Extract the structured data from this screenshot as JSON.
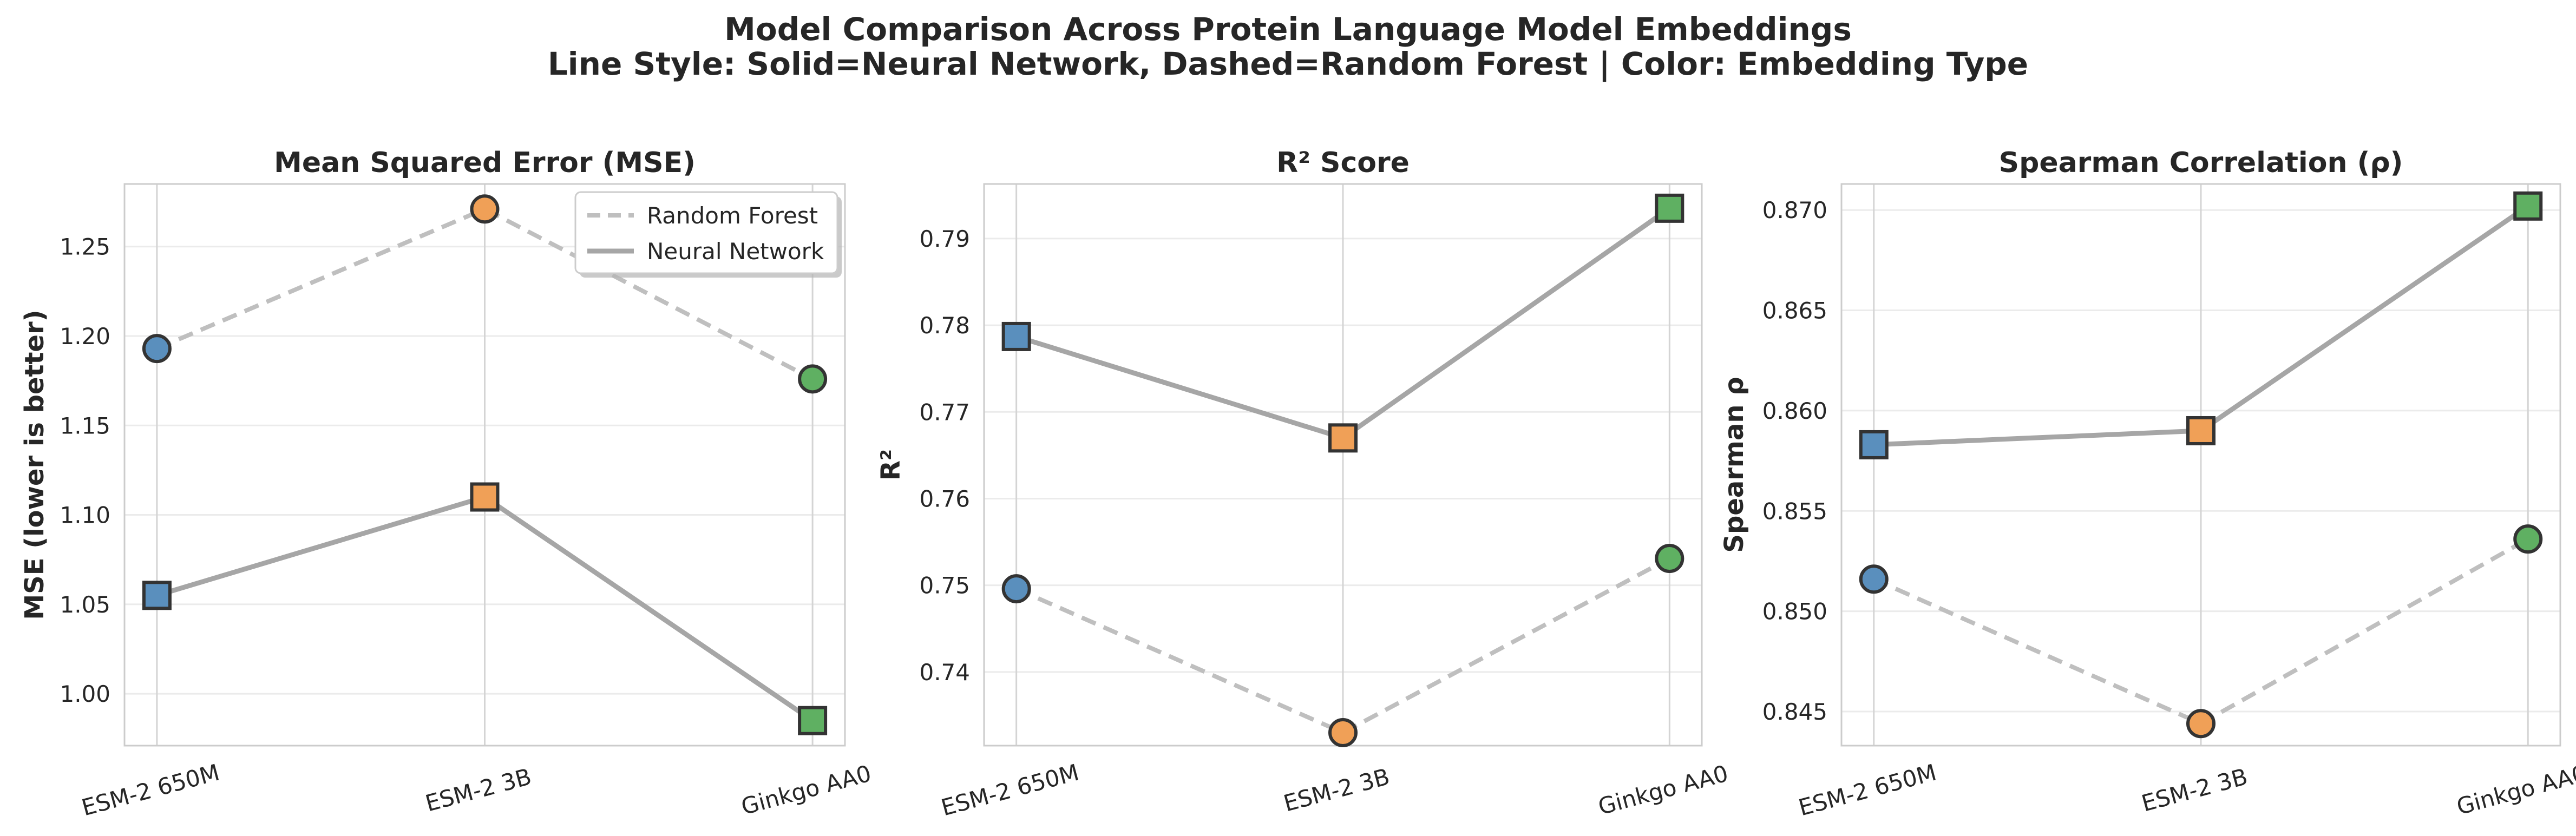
{
  "suptitle": {
    "line1": "Model Comparison Across Protein Language Model Embeddings",
    "line2": "Line Style: Solid=Neural Network, Dashed=Random Forest | Color: Embedding Type"
  },
  "colors": {
    "ESM-2 650M": "#5a8fbd",
    "ESM-2 3B": "#f0a057",
    "Ginkgo AA0": "#5fb062",
    "neural_network_line": "#a6a6a6",
    "random_forest_line": "#bfbfbf",
    "marker_edge": "#333333"
  },
  "legend": {
    "panel": 0,
    "position": "top-right",
    "entries": [
      {
        "label": "Random Forest",
        "style": "dashed"
      },
      {
        "label": "Neural Network",
        "style": "solid"
      }
    ]
  },
  "chart_data": [
    {
      "type": "line",
      "title": "Mean Squared Error (MSE)",
      "xlabel": "",
      "ylabel": "MSE (lower is better)",
      "categories": [
        "ESM-2 650M",
        "ESM-2 3B",
        "Ginkgo AA0"
      ],
      "ylim": [
        0.971,
        1.285
      ],
      "yticks": [
        1.0,
        1.05,
        1.1,
        1.15,
        1.2,
        1.25
      ],
      "ytick_labels": [
        "1.00",
        "1.05",
        "1.10",
        "1.15",
        "1.20",
        "1.25"
      ],
      "grid": true,
      "series": [
        {
          "name": "Random Forest",
          "style": "dashed",
          "marker": "circle",
          "values": [
            1.193,
            1.271,
            1.176
          ]
        },
        {
          "name": "Neural Network",
          "style": "solid",
          "marker": "square",
          "values": [
            1.055,
            1.11,
            0.985
          ]
        }
      ]
    },
    {
      "type": "line",
      "title": "R² Score",
      "xlabel": "",
      "ylabel": "R²",
      "categories": [
        "ESM-2 650M",
        "ESM-2 3B",
        "Ginkgo AA0"
      ],
      "ylim": [
        0.7315,
        0.7963
      ],
      "yticks": [
        0.74,
        0.75,
        0.76,
        0.77,
        0.78,
        0.79
      ],
      "ytick_labels": [
        "0.74",
        "0.75",
        "0.76",
        "0.77",
        "0.78",
        "0.79"
      ],
      "grid": true,
      "series": [
        {
          "name": "Random Forest",
          "style": "dashed",
          "marker": "circle",
          "values": [
            0.7496,
            0.733,
            0.7531
          ]
        },
        {
          "name": "Neural Network",
          "style": "solid",
          "marker": "square",
          "values": [
            0.7787,
            0.767,
            0.7935
          ]
        }
      ]
    },
    {
      "type": "line",
      "title": "Spearman Correlation (ρ)",
      "xlabel": "",
      "ylabel": "Spearman ρ",
      "categories": [
        "ESM-2 650M",
        "ESM-2 3B",
        "Ginkgo AA0"
      ],
      "ylim": [
        0.8433,
        0.8713
      ],
      "yticks": [
        0.845,
        0.85,
        0.855,
        0.86,
        0.865,
        0.87
      ],
      "ytick_labels": [
        "0.845",
        "0.850",
        "0.855",
        "0.860",
        "0.865",
        "0.870"
      ],
      "grid": true,
      "series": [
        {
          "name": "Random Forest",
          "style": "dashed",
          "marker": "circle",
          "values": [
            0.8516,
            0.8444,
            0.8536
          ]
        },
        {
          "name": "Neural Network",
          "style": "solid",
          "marker": "square",
          "values": [
            0.8583,
            0.859,
            0.8702
          ]
        }
      ]
    }
  ]
}
